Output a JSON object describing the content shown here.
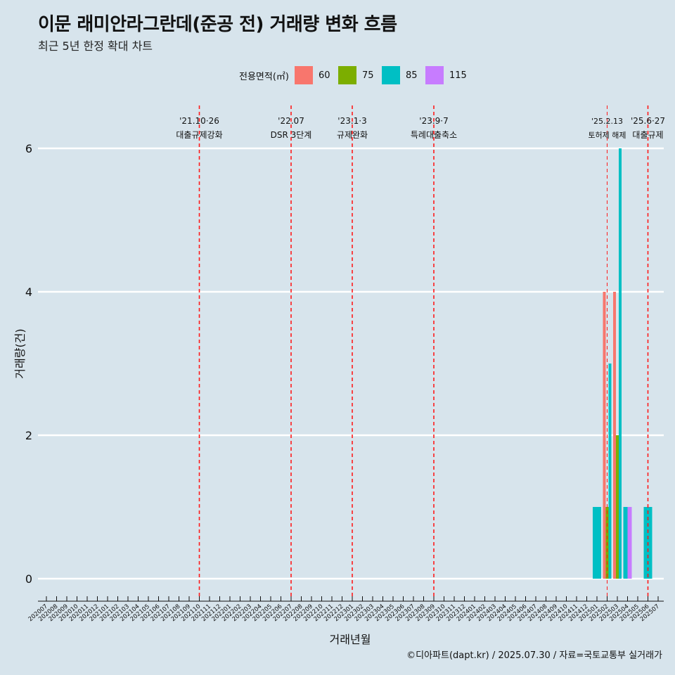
{
  "chart_data": {
    "type": "bar",
    "title": "이문 래미안라그란데(준공 전) 거래량 변화 흐름",
    "subtitle": "최근 5년 한정 확대 차트",
    "xlabel": "거래년월",
    "ylabel": "거래량(건)",
    "ylim": [
      0,
      6
    ],
    "yticks": [
      0,
      2,
      4,
      6
    ],
    "grid": "horizontal",
    "legend_title": "전용면적(㎡)",
    "legend_position": "top",
    "caption": "©디아파트(dapt.kr) / 2025.07.30 / 자료=국토교통부 실거래가",
    "categories": [
      "202007",
      "202008",
      "202009",
      "202010",
      "202011",
      "202012",
      "202101",
      "202102",
      "202103",
      "202104",
      "202105",
      "202106",
      "202107",
      "202108",
      "202109",
      "202110",
      "202111",
      "202112",
      "202201",
      "202202",
      "202203",
      "202204",
      "202205",
      "202206",
      "202207",
      "202208",
      "202209",
      "202210",
      "202211",
      "202212",
      "202301",
      "202302",
      "202303",
      "202304",
      "202305",
      "202306",
      "202307",
      "202308",
      "202309",
      "202310",
      "202311",
      "202312",
      "202401",
      "202402",
      "202403",
      "202404",
      "202405",
      "202406",
      "202407",
      "202408",
      "202409",
      "202410",
      "202411",
      "202412",
      "202501",
      "202502",
      "202503",
      "202504",
      "202505",
      "202506",
      "202507"
    ],
    "series": [
      {
        "name": "60",
        "color": "#f8766d",
        "values": [
          {
            "x": "202502",
            "y": 4
          },
          {
            "x": "202503",
            "y": 4
          }
        ]
      },
      {
        "name": "75",
        "color": "#7cae00",
        "values": [
          {
            "x": "202502",
            "y": 1
          },
          {
            "x": "202503",
            "y": 2
          }
        ]
      },
      {
        "name": "85",
        "color": "#00bfc4",
        "values": [
          {
            "x": "202501",
            "y": 1
          },
          {
            "x": "202502",
            "y": 3
          },
          {
            "x": "202503",
            "y": 6
          },
          {
            "x": "202504",
            "y": 1
          },
          {
            "x": "202506",
            "y": 1
          }
        ]
      },
      {
        "name": "115",
        "color": "#c77cff",
        "values": [
          {
            "x": "202504",
            "y": 1
          }
        ]
      }
    ],
    "annotations": [
      {
        "x": "202110",
        "date": "'21.10·26",
        "label": "대출규제강화"
      },
      {
        "x": "202207",
        "date": "'22.07",
        "label": "DSR 3단계"
      },
      {
        "x": "202301",
        "date": "'23.1·3",
        "label": "규제완화"
      },
      {
        "x": "202309",
        "date": "'23.9·7",
        "label": "특례대출축소"
      },
      {
        "x": "202502",
        "date": "'25.2.13",
        "label": "토허제 해제"
      },
      {
        "x": "202506",
        "date": "'25.6·27",
        "label": "대출규제"
      }
    ]
  }
}
